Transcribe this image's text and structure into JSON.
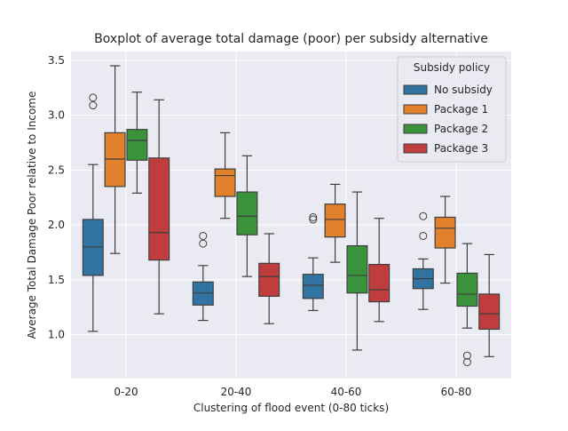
{
  "chart_data": {
    "type": "boxplot",
    "title": "Boxplot of average total damage (poor) per subsidy alternative",
    "xlabel": "Clustering of flood event (0-80 ticks)",
    "ylabel": "Average Total Damage Poor relative to Income",
    "categories": [
      "0-20",
      "20-40",
      "40-60",
      "60-80"
    ],
    "ylim": [
      0.6,
      3.58
    ],
    "yticks": [
      1.0,
      1.5,
      2.0,
      2.5,
      3.0,
      3.5
    ],
    "ytick_labels": [
      "1.0",
      "1.5",
      "2.0",
      "2.5",
      "3.0",
      "3.5"
    ],
    "grid": true,
    "legend": {
      "title": "Subsidy policy",
      "placement": "top-right"
    },
    "series": [
      {
        "name": "No subsidy",
        "color": "#3274a1",
        "boxes": [
          {
            "whislo": 1.03,
            "q1": 1.54,
            "med": 1.8,
            "q3": 2.05,
            "whishi": 2.55,
            "fliers": [
              3.09,
              3.16
            ]
          },
          {
            "whislo": 1.13,
            "q1": 1.27,
            "med": 1.38,
            "q3": 1.48,
            "whishi": 1.63,
            "fliers": [
              1.83,
              1.9
            ]
          },
          {
            "whislo": 1.22,
            "q1": 1.33,
            "med": 1.45,
            "q3": 1.55,
            "whishi": 1.7,
            "fliers": [
              2.05,
              2.07
            ]
          },
          {
            "whislo": 1.23,
            "q1": 1.42,
            "med": 1.51,
            "q3": 1.6,
            "whishi": 1.69,
            "fliers": [
              1.9,
              2.08
            ]
          }
        ]
      },
      {
        "name": "Package 1",
        "color": "#e1812c",
        "boxes": [
          {
            "whislo": 1.74,
            "q1": 2.35,
            "med": 2.6,
            "q3": 2.84,
            "whishi": 3.45,
            "fliers": []
          },
          {
            "whislo": 2.06,
            "q1": 2.26,
            "med": 2.45,
            "q3": 2.51,
            "whishi": 2.84,
            "fliers": []
          },
          {
            "whislo": 1.66,
            "q1": 1.89,
            "med": 2.05,
            "q3": 2.19,
            "whishi": 2.37,
            "fliers": []
          },
          {
            "whislo": 1.47,
            "q1": 1.79,
            "med": 1.97,
            "q3": 2.07,
            "whishi": 2.26,
            "fliers": []
          }
        ]
      },
      {
        "name": "Package 2",
        "color": "#3a923a",
        "boxes": [
          {
            "whislo": 2.29,
            "q1": 2.59,
            "med": 2.77,
            "q3": 2.87,
            "whishi": 3.21,
            "fliers": []
          },
          {
            "whislo": 1.53,
            "q1": 1.91,
            "med": 2.08,
            "q3": 2.3,
            "whishi": 2.63,
            "fliers": []
          },
          {
            "whislo": 0.86,
            "q1": 1.38,
            "med": 1.54,
            "q3": 1.81,
            "whishi": 2.3,
            "fliers": []
          },
          {
            "whislo": 1.06,
            "q1": 1.26,
            "med": 1.37,
            "q3": 1.56,
            "whishi": 1.83,
            "fliers": [
              0.75,
              0.81
            ]
          }
        ]
      },
      {
        "name": "Package 3",
        "color": "#c03d3e",
        "boxes": [
          {
            "whislo": 1.19,
            "q1": 1.68,
            "med": 1.93,
            "q3": 2.61,
            "whishi": 3.14,
            "fliers": []
          },
          {
            "whislo": 1.1,
            "q1": 1.35,
            "med": 1.53,
            "q3": 1.65,
            "whishi": 1.92,
            "fliers": []
          },
          {
            "whislo": 1.12,
            "q1": 1.3,
            "med": 1.41,
            "q3": 1.64,
            "whishi": 2.06,
            "fliers": []
          },
          {
            "whislo": 0.8,
            "q1": 1.05,
            "med": 1.19,
            "q3": 1.37,
            "whishi": 1.73,
            "fliers": []
          }
        ]
      }
    ]
  }
}
